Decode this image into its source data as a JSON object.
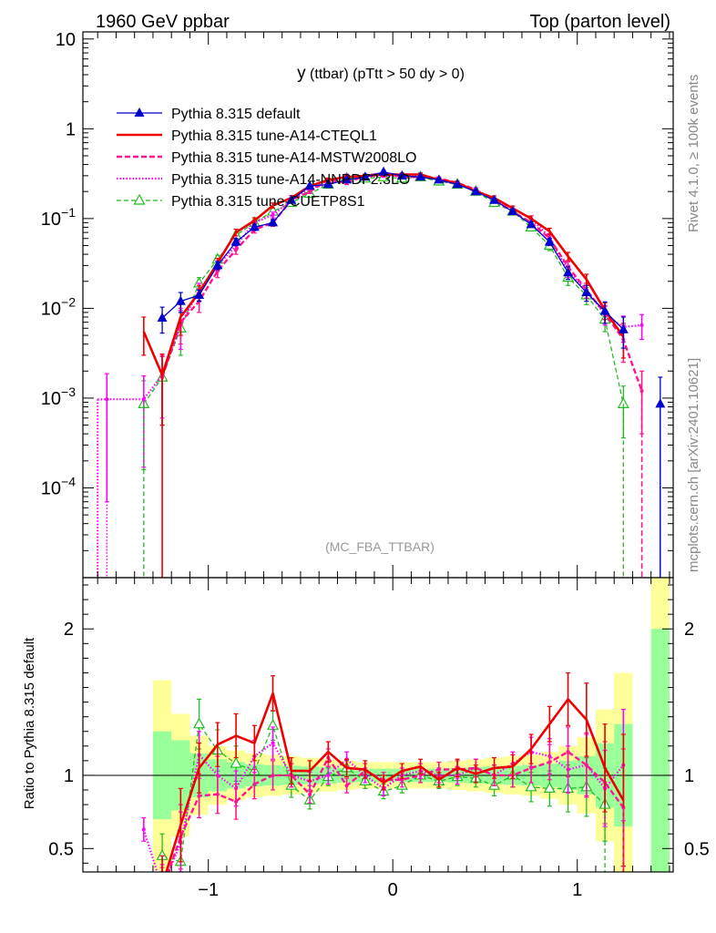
{
  "header": {
    "left": "1960 GeV ppbar",
    "right": "Top (parton level)"
  },
  "side_labels": {
    "rivet": "Rivet 4.1.0, ≥ 100k events",
    "mcplots": "mcplots.cern.ch [arXiv:2401.10621]"
  },
  "plot_title_main": "y",
  "plot_title_sub": "(ttbar) (pTtt > 50 dy > 0)",
  "watermark": "(MC_FBA_TTBAR)",
  "ratio_ylabel": "Ratio to Pythia 8.315 default",
  "colors": {
    "default": "#0000cc",
    "cteql1": "#ee0000",
    "mstw": "#ff1493",
    "nnpdf": "#ff00ff",
    "cuetp": "#22bb22",
    "band_inner": "#99ff99",
    "band_outer": "#ffff99"
  },
  "chart_data": {
    "type": "line",
    "x_label": "y",
    "x_range": [
      -1.68,
      1.52
    ],
    "x_ticks": [
      -1,
      0,
      1
    ],
    "x_tick_labels": [
      "−1",
      "0",
      "1"
    ],
    "y_scale": "log",
    "y_range": [
      1e-05,
      12
    ],
    "y_ticks": [
      10,
      1,
      0.1,
      0.01,
      0.001,
      0.0001
    ],
    "y_tick_labels": [
      "10",
      "1",
      "10−1",
      "10−2",
      "10−3",
      "10−4"
    ],
    "ratio_range": [
      0.34,
      2.35
    ],
    "ratio_ticks": [
      0.5,
      1,
      2
    ],
    "ratio_tick_labels": [
      "0.5",
      "1",
      "2"
    ],
    "bin_centers": [
      -1.55,
      -1.35,
      -1.25,
      -1.15,
      -1.05,
      -0.95,
      -0.85,
      -0.75,
      -0.65,
      -0.55,
      -0.45,
      -0.35,
      -0.25,
      -0.15,
      -0.05,
      0.05,
      0.15,
      0.25,
      0.35,
      0.45,
      0.55,
      0.65,
      0.75,
      0.85,
      0.95,
      1.05,
      1.15,
      1.25,
      1.35,
      1.45
    ],
    "series": [
      {
        "name": "Pythia 8.315 default",
        "style": "default",
        "values": [
          null,
          null,
          0.0078,
          0.012,
          0.014,
          0.03,
          0.055,
          0.08,
          0.09,
          0.16,
          0.23,
          0.24,
          0.27,
          0.29,
          0.33,
          0.3,
          0.29,
          0.27,
          0.24,
          0.2,
          0.16,
          0.12,
          0.086,
          0.055,
          0.025,
          0.015,
          0.0093,
          0.0058,
          null,
          0.00086
        ],
        "errors": [
          0,
          0,
          0.0025,
          0.003,
          0.002,
          0.003,
          0.005,
          0.006,
          0.007,
          0.008,
          0.01,
          0.01,
          0.01,
          0.01,
          0.012,
          0.01,
          0.01,
          0.01,
          0.01,
          0.008,
          0.008,
          0.007,
          0.006,
          0.005,
          0.004,
          0.003,
          0.0025,
          0.0022,
          0,
          0.00085
        ]
      },
      {
        "name": "Pythia 8.315 tune-A14-CTEQL1",
        "style": "cteql1",
        "values": [
          null,
          0.0055,
          0.0018,
          0.008,
          0.015,
          0.032,
          0.07,
          0.095,
          0.14,
          0.17,
          0.23,
          0.27,
          0.29,
          0.3,
          0.31,
          0.31,
          0.31,
          0.27,
          0.25,
          0.2,
          0.17,
          0.13,
          0.1,
          0.072,
          0.038,
          0.021,
          0.0095,
          0.0048,
          null,
          null
        ],
        "errors": [
          0,
          0.0025,
          0.0013,
          0.003,
          0.003,
          0.004,
          0.006,
          0.007,
          0.009,
          0.01,
          0.011,
          0.012,
          0.012,
          0.012,
          0.012,
          0.012,
          0.012,
          0.011,
          0.011,
          0.01,
          0.009,
          0.008,
          0.007,
          0.006,
          0.004,
          0.003,
          0.002,
          0.002,
          0,
          0
        ]
      },
      {
        "name": "Pythia 8.315 tune-A14-MSTW2008LO",
        "style": "mstw",
        "values": [
          null,
          null,
          0.0017,
          0.007,
          0.012,
          0.026,
          0.045,
          0.075,
          0.09,
          0.16,
          0.2,
          0.27,
          0.25,
          0.3,
          0.32,
          0.29,
          0.29,
          0.28,
          0.25,
          0.21,
          0.16,
          0.12,
          0.09,
          0.06,
          0.029,
          0.016,
          0.0088,
          0.0045,
          0.0012,
          null
        ],
        "errors": [
          0,
          0,
          0.0012,
          0.003,
          0.003,
          0.004,
          0.005,
          0.006,
          0.008,
          0.01,
          0.01,
          0.012,
          0.011,
          0.012,
          0.012,
          0.012,
          0.012,
          0.011,
          0.011,
          0.01,
          0.009,
          0.008,
          0.007,
          0.006,
          0.004,
          0.003,
          0.002,
          0.002,
          0.0008,
          0
        ]
      },
      {
        "name": "Pythia 8.315 tune-A14-NNPDF2.3LO",
        "style": "nnpdf",
        "values": [
          0.00097,
          0.00097,
          0.0018,
          0.0065,
          0.016,
          0.03,
          0.05,
          0.09,
          0.11,
          0.16,
          0.22,
          0.24,
          0.3,
          0.29,
          0.3,
          0.3,
          0.3,
          0.27,
          0.24,
          0.21,
          0.16,
          0.13,
          0.1,
          0.062,
          0.026,
          0.016,
          0.0085,
          0.0062,
          0.0065,
          null
        ],
        "errors": [
          0.0009,
          0.0008,
          0.0012,
          0.003,
          0.003,
          0.004,
          0.005,
          0.006,
          0.008,
          0.01,
          0.01,
          0.011,
          0.012,
          0.012,
          0.012,
          0.012,
          0.012,
          0.011,
          0.011,
          0.01,
          0.009,
          0.008,
          0.007,
          0.006,
          0.004,
          0.003,
          0.002,
          0.002,
          0.002,
          0
        ]
      },
      {
        "name": "Pythia 8.315 tune-CUETP8S1",
        "style": "cuetp",
        "values": [
          null,
          0.00086,
          0.0017,
          0.006,
          0.019,
          0.035,
          0.065,
          0.09,
          0.12,
          0.15,
          0.19,
          0.24,
          0.28,
          0.28,
          0.29,
          0.28,
          0.29,
          0.26,
          0.24,
          0.2,
          0.15,
          0.12,
          0.08,
          0.05,
          0.022,
          0.014,
          0.0075,
          0.00086,
          null,
          null
        ],
        "errors": [
          0,
          0.0007,
          0.0012,
          0.003,
          0.003,
          0.004,
          0.005,
          0.006,
          0.008,
          0.01,
          0.01,
          0.011,
          0.012,
          0.012,
          0.012,
          0.012,
          0.012,
          0.011,
          0.011,
          0.01,
          0.009,
          0.008,
          0.007,
          0.006,
          0.004,
          0.003,
          0.002,
          0.0005,
          0,
          0
        ]
      }
    ],
    "ratio_series": [
      {
        "style": "cteql1",
        "values": [
          null,
          null,
          0.25,
          0.66,
          1.05,
          1.21,
          1.27,
          1.22,
          1.56,
          1.03,
          1.03,
          1.16,
          1.05,
          1.04,
          0.95,
          1.03,
          1.06,
          0.97,
          1.05,
          1.01,
          1.05,
          1.06,
          1.18,
          1.35,
          1.52,
          1.38,
          1.05,
          0.83,
          null,
          null
        ],
        "errors": [
          0,
          0,
          0.2,
          0.25,
          0.17,
          0.15,
          0.15,
          0.12,
          0.12,
          0.09,
          0.07,
          0.07,
          0.06,
          0.06,
          0.05,
          0.05,
          0.05,
          0.05,
          0.06,
          0.06,
          0.07,
          0.08,
          0.1,
          0.12,
          0.18,
          0.25,
          0.3,
          0.45,
          0,
          0
        ]
      },
      {
        "style": "mstw",
        "values": [
          null,
          null,
          0.22,
          0.58,
          0.86,
          0.87,
          0.82,
          0.94,
          1.0,
          1.0,
          0.87,
          1.12,
          0.93,
          1.03,
          0.97,
          0.97,
          1.0,
          1.04,
          1.04,
          1.05,
          1.0,
          1.0,
          1.05,
          1.09,
          1.16,
          1.07,
          0.95,
          0.78,
          null,
          null
        ],
        "errors": [
          0,
          0,
          0.15,
          0.22,
          0.15,
          0.13,
          0.12,
          0.1,
          0.1,
          0.08,
          0.06,
          0.06,
          0.05,
          0.05,
          0.05,
          0.05,
          0.05,
          0.05,
          0.06,
          0.06,
          0.07,
          0.08,
          0.1,
          0.12,
          0.17,
          0.22,
          0.28,
          0.4,
          0,
          0
        ]
      },
      {
        "style": "nnpdf",
        "values": [
          null,
          0.63,
          0.23,
          0.54,
          1.14,
          1.0,
          0.91,
          1.13,
          1.22,
          1.0,
          0.96,
          1.0,
          1.11,
          1.0,
          0.91,
          1.0,
          1.03,
          1.0,
          1.0,
          1.05,
          1.0,
          1.08,
          1.16,
          1.13,
          1.04,
          1.07,
          0.91,
          1.07,
          null,
          null
        ],
        "errors": [
          0,
          0.08,
          0.16,
          0.21,
          0.16,
          0.13,
          0.12,
          0.11,
          0.11,
          0.08,
          0.06,
          0.06,
          0.05,
          0.05,
          0.05,
          0.05,
          0.05,
          0.05,
          0.06,
          0.06,
          0.07,
          0.08,
          0.1,
          0.12,
          0.16,
          0.21,
          0.26,
          0.38,
          0,
          0
        ]
      },
      {
        "style": "cuetp",
        "values": [
          null,
          null,
          0.45,
          0.41,
          1.35,
          1.17,
          1.08,
          1.03,
          1.34,
          0.93,
          0.83,
          0.99,
          1.05,
          0.96,
          0.89,
          0.93,
          1.0,
          0.96,
          0.99,
          0.98,
          0.93,
          1.0,
          0.92,
          0.91,
          0.91,
          0.92,
          0.8,
          null,
          null,
          null
        ],
        "errors": [
          0,
          0,
          0.15,
          0.2,
          0.17,
          0.14,
          0.12,
          0.1,
          0.1,
          0.08,
          0.06,
          0.06,
          0.05,
          0.05,
          0.05,
          0.05,
          0.05,
          0.05,
          0.06,
          0.06,
          0.07,
          0.08,
          0.1,
          0.12,
          0.16,
          0.2,
          0.25,
          0,
          0,
          0
        ]
      }
    ],
    "band": {
      "edges": [
        -1.3,
        -1.2,
        -1.1,
        -1.0,
        -0.9,
        -0.8,
        -0.7,
        -0.6,
        -0.5,
        -0.4,
        -0.3,
        -0.2,
        -0.1,
        0.0,
        0.1,
        0.2,
        0.3,
        0.4,
        0.5,
        0.6,
        0.7,
        0.8,
        0.9,
        1.0,
        1.1,
        1.2,
        1.3
      ],
      "inner": [
        0.3,
        0.24,
        0.15,
        0.11,
        0.09,
        0.075,
        0.07,
        0.065,
        0.06,
        0.055,
        0.05,
        0.045,
        0.045,
        0.045,
        0.045,
        0.045,
        0.05,
        0.055,
        0.06,
        0.065,
        0.07,
        0.08,
        0.1,
        0.13,
        0.22,
        0.35
      ],
      "outer": [
        0.65,
        0.42,
        0.27,
        0.2,
        0.17,
        0.15,
        0.14,
        0.13,
        0.12,
        0.11,
        0.1,
        0.09,
        0.09,
        0.09,
        0.09,
        0.09,
        0.1,
        0.11,
        0.12,
        0.13,
        0.14,
        0.16,
        0.2,
        0.26,
        0.45,
        0.7
      ],
      "last_bin": {
        "x0": 1.4,
        "x1": 1.5,
        "inner_low": 0.0,
        "inner_high": 2.0,
        "outer_low": 0.0,
        "outer_high": 2.4
      }
    }
  }
}
